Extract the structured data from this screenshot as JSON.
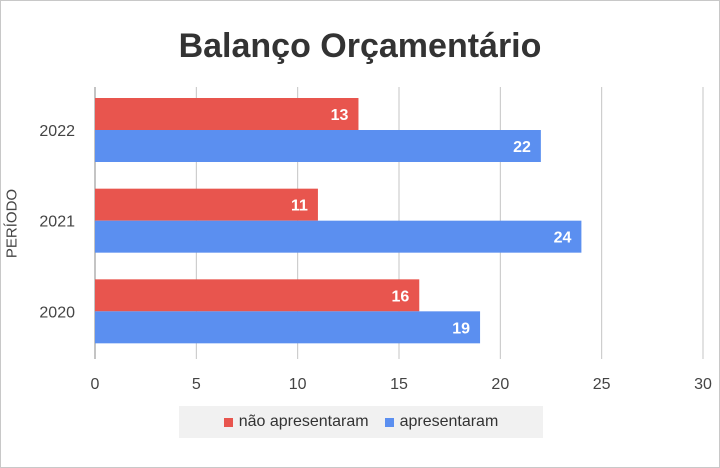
{
  "chart_data": {
    "type": "bar",
    "orientation": "horizontal",
    "title": "Balanço Orçamentário",
    "xlabel": "",
    "ylabel": "PERÍODO",
    "categories": [
      "2022",
      "2021",
      "2020"
    ],
    "series": [
      {
        "name": "não apresentaram",
        "color": "#e8554e",
        "values": [
          13,
          11,
          16
        ]
      },
      {
        "name": "apresentaram",
        "color": "#5b8ff0",
        "values": [
          22,
          24,
          19
        ]
      }
    ],
    "xlim": [
      0,
      30
    ],
    "xticks": [
      0,
      5,
      10,
      15,
      20,
      25,
      30
    ],
    "grid": true,
    "data_labels": true,
    "legend_position": "bottom"
  }
}
